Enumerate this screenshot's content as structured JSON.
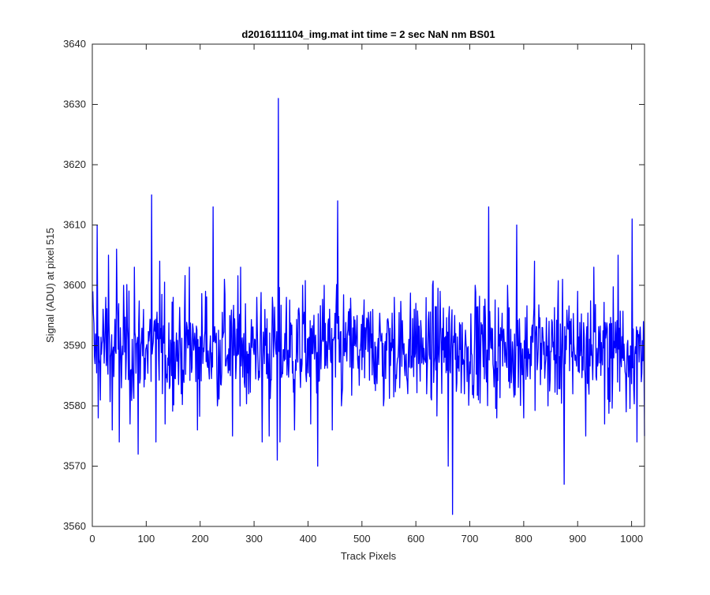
{
  "chart_data": {
    "type": "line",
    "title": "d2016111104_img.mat int time = 2 sec  NaN nm BS01",
    "xlabel": "Track Pixels",
    "ylabel": "Signal (ADU) at pixel 515",
    "xlim": [
      0,
      1024
    ],
    "ylim": [
      3560,
      3640
    ],
    "xticks": [
      0,
      100,
      200,
      300,
      400,
      500,
      600,
      700,
      800,
      900,
      1000
    ],
    "yticks": [
      3560,
      3570,
      3580,
      3590,
      3600,
      3610,
      3620,
      3630,
      3640
    ],
    "grid": false,
    "box": true,
    "series": [
      {
        "color": "#0000ff",
        "x": [
          1,
          5,
          9,
          11,
          25,
          30,
          37,
          45,
          50,
          58,
          70,
          78,
          85,
          95,
          102,
          110,
          118,
          125,
          135,
          150,
          165,
          180,
          195,
          210,
          224,
          232,
          245,
          260,
          275,
          290,
          305,
          315,
          320,
          328,
          335,
          343,
          345,
          348,
          360,
          375,
          390,
          405,
          418,
          430,
          445,
          455,
          462,
          480,
          500,
          520,
          540,
          560,
          580,
          600,
          620,
          645,
          660,
          668,
          672,
          690,
          710,
          735,
          750,
          770,
          787,
          800,
          820,
          845,
          872,
          875,
          900,
          915,
          930,
          950,
          975,
          990,
          1001,
          1010,
          1018,
          1024
        ],
        "y": [
          3599,
          3587,
          3610,
          3578,
          3598,
          3605,
          3576,
          3606,
          3574,
          3600,
          3577,
          3603,
          3572,
          3596,
          3588,
          3615,
          3574,
          3604,
          3577,
          3598,
          3582,
          3603,
          3576,
          3599,
          3613,
          3580,
          3601,
          3575,
          3603,
          3582,
          3598,
          3574,
          3596,
          3575,
          3596,
          3571,
          3631,
          3574,
          3598,
          3576,
          3600,
          3577,
          3570,
          3600,
          3576,
          3614,
          3580,
          3594,
          3586,
          3596,
          3580,
          3598,
          3585,
          3597,
          3582,
          3599,
          3570,
          3562,
          3595,
          3582,
          3600,
          3613,
          3578,
          3600,
          3610,
          3578,
          3604,
          3580,
          3601,
          3567,
          3599,
          3575,
          3603,
          3577,
          3605,
          3579,
          3611,
          3574,
          3584,
          3575
        ]
      }
    ]
  }
}
